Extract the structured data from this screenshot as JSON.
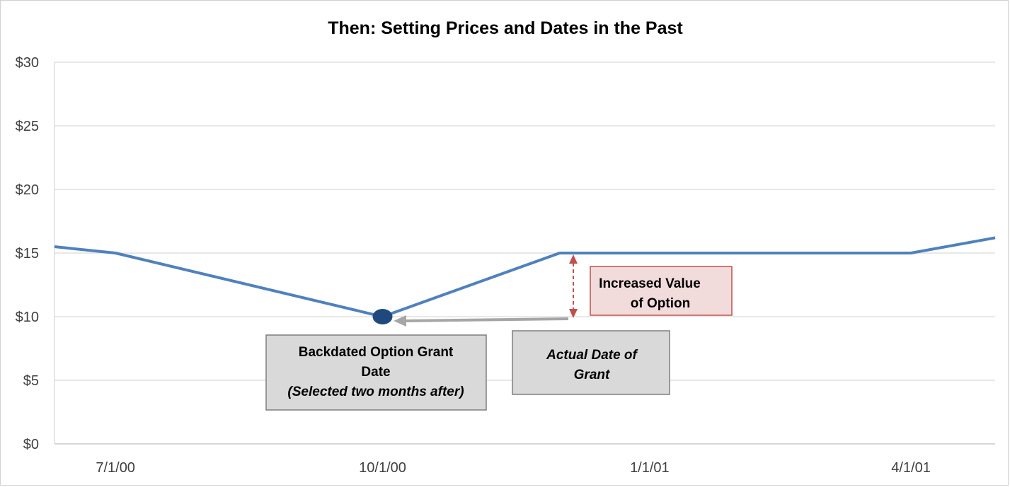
{
  "chart_data": {
    "type": "line",
    "title": "Then: Setting Prices and Dates in the Past",
    "xlabel": "",
    "ylabel": "",
    "ylim": [
      0,
      30
    ],
    "xlim": [
      "2000-06-10",
      "2001-04-30"
    ],
    "y_ticks": [
      "$0",
      "$5",
      "$10",
      "$15",
      "$20",
      "$25",
      "$30"
    ],
    "y_tick_values": [
      0,
      5,
      10,
      15,
      20,
      25,
      30
    ],
    "x_ticks": [
      "7/1/00",
      "10/1/00",
      "1/1/01",
      "4/1/01"
    ],
    "x_tick_dates": [
      "2000-07-01",
      "2000-10-01",
      "2001-01-01",
      "2001-04-01"
    ],
    "grid": true,
    "series": [
      {
        "color": "#4f81bd",
        "points": [
          {
            "x": "2000-06-10",
            "y": 15.5
          },
          {
            "x": "2000-07-01",
            "y": 15.0
          },
          {
            "x": "2000-10-01",
            "y": 10.0
          },
          {
            "x": "2000-12-01",
            "y": 15.0
          },
          {
            "x": "2001-04-01",
            "y": 15.0
          },
          {
            "x": "2001-04-30",
            "y": 16.2
          }
        ]
      }
    ],
    "marker": {
      "x": "2000-10-01",
      "y": 10.0,
      "color": "#1f497d"
    },
    "annotations": {
      "backdated": {
        "line1": "Backdated Option Grant",
        "line2": "Date",
        "line3": "(Selected two months after)"
      },
      "actual": {
        "line1": "Actual Date of",
        "line2": "Grant"
      },
      "increased": {
        "line1": "Increased Value",
        "line2": "of Option"
      }
    },
    "colors": {
      "line": "#4f81bd",
      "marker": "#1f497d",
      "grid": "#d9d9d9",
      "gray_box_fill": "#d9d9d9",
      "gray_box_border": "#7f7f7f",
      "gray_arrow": "#a6a6a6",
      "red_arrow": "#c0504d",
      "red_box_fill": "#f2dcdb",
      "red_box_border": "#c0504d"
    }
  }
}
